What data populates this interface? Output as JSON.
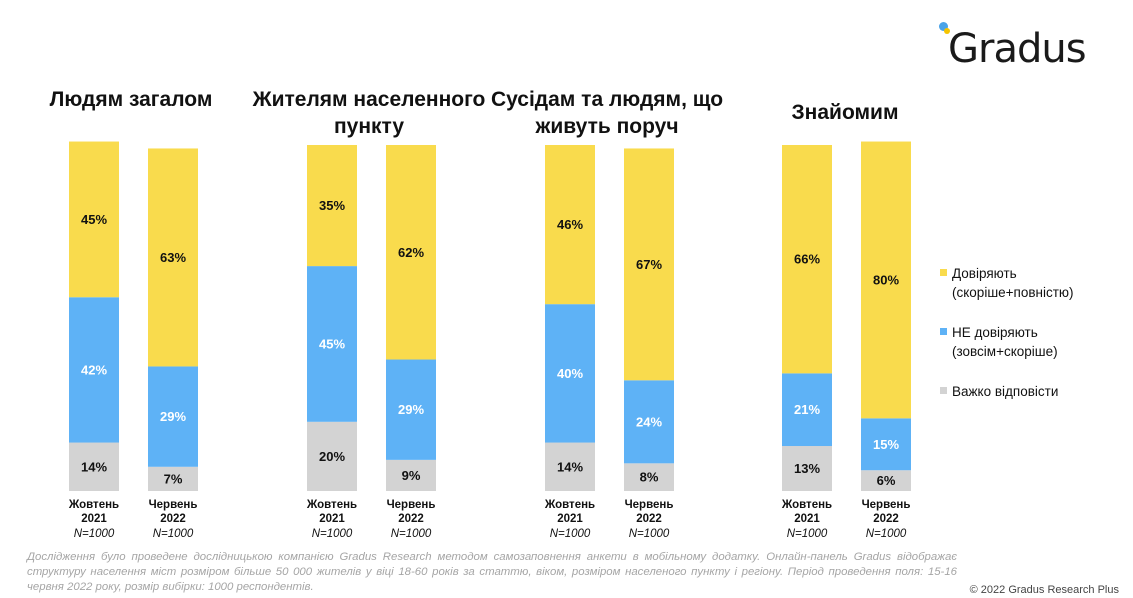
{
  "brand": {
    "logo_text": "Gradus",
    "copyright": "© 2022 Gradus Research Plus"
  },
  "colors": {
    "trust": "#F9DB4D",
    "distrust": "#5EB2F6",
    "hard": "#D3D3D3"
  },
  "legend": [
    {
      "key": "trust",
      "label": "Довіряють",
      "sub": "(скоріше+повністю)"
    },
    {
      "key": "distrust",
      "label": "НЕ довіряють",
      "sub": "(зовсім+скоріше)"
    },
    {
      "key": "hard",
      "label": "Важко відповісти",
      "sub": ""
    }
  ],
  "footnote": "Дослідження було проведене дослідницькою компанією Gradus Research методом самозаповнення анкети в мобільному додатку. Онлайн-панель Gradus відображає структуру населення міст розміром більше 50 000 жителів у віці 18-60 років за статтю, віком, розміром населеного пункту і регіону. Період проведення поля: 15-16 червня 2022 року, розмір вибірки: 1000 респондентів.",
  "chart_data": [
    {
      "type": "bar",
      "stacked": true,
      "orientation": "vertical",
      "title": "Людям загалом",
      "categories": [
        "Жовтень 2021",
        "Червень 2022"
      ],
      "sample_labels": [
        "N=1000",
        "N=1000"
      ],
      "series": [
        {
          "name": "Важко відповісти",
          "key": "hard",
          "values": [
            14,
            7
          ]
        },
        {
          "name": "НЕ довіряють",
          "key": "distrust",
          "values": [
            42,
            29
          ]
        },
        {
          "name": "Довіряють",
          "key": "trust",
          "values": [
            45,
            63
          ]
        }
      ],
      "ylim": [
        0,
        100
      ],
      "unit": "%"
    },
    {
      "type": "bar",
      "stacked": true,
      "orientation": "vertical",
      "title": "Жителям населенного пункту",
      "categories": [
        "Жовтень 2021",
        "Червень 2022"
      ],
      "sample_labels": [
        "N=1000",
        "N=1000"
      ],
      "series": [
        {
          "name": "Важко відповісти",
          "key": "hard",
          "values": [
            20,
            9
          ]
        },
        {
          "name": "НЕ довіряють",
          "key": "distrust",
          "values": [
            45,
            29
          ]
        },
        {
          "name": "Довіряють",
          "key": "trust",
          "values": [
            35,
            62
          ]
        }
      ],
      "ylim": [
        0,
        100
      ],
      "unit": "%"
    },
    {
      "type": "bar",
      "stacked": true,
      "orientation": "vertical",
      "title": "Сусідам та людям, що живуть поруч",
      "categories": [
        "Жовтень 2021",
        "Червень 2022"
      ],
      "sample_labels": [
        "N=1000",
        "N=1000"
      ],
      "series": [
        {
          "name": "Важко відповісти",
          "key": "hard",
          "values": [
            14,
            8
          ]
        },
        {
          "name": "НЕ довіряють",
          "key": "distrust",
          "values": [
            40,
            24
          ]
        },
        {
          "name": "Довіряють",
          "key": "trust",
          "values": [
            46,
            67
          ]
        }
      ],
      "ylim": [
        0,
        100
      ],
      "unit": "%"
    },
    {
      "type": "bar",
      "stacked": true,
      "orientation": "vertical",
      "title": "Знайомим",
      "categories": [
        "Жовтень 2021",
        "Червень 2022"
      ],
      "sample_labels": [
        "N=1000",
        "N=1000"
      ],
      "series": [
        {
          "name": "Важко відповісти",
          "key": "hard",
          "values": [
            13,
            6
          ]
        },
        {
          "name": "НЕ довіряють",
          "key": "distrust",
          "values": [
            21,
            15
          ]
        },
        {
          "name": "Довіряють",
          "key": "trust",
          "values": [
            66,
            80
          ]
        }
      ],
      "ylim": [
        0,
        100
      ],
      "unit": "%"
    }
  ]
}
